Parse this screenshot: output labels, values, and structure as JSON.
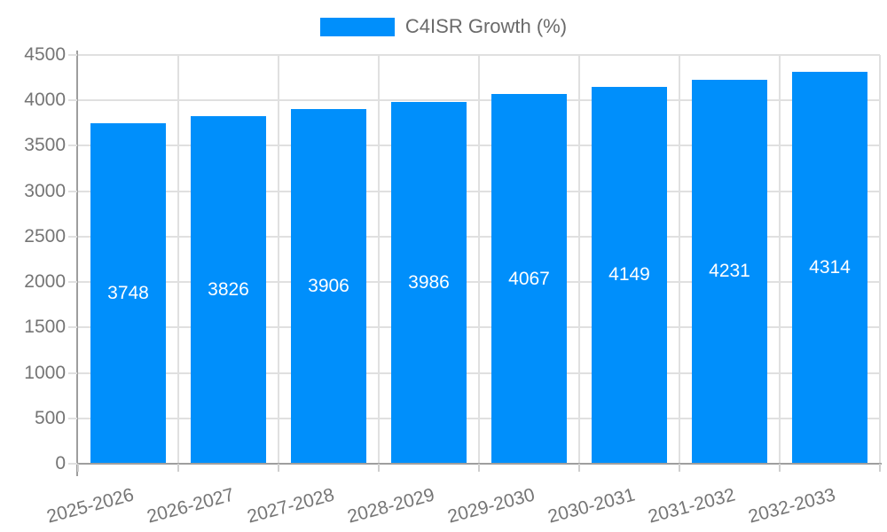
{
  "chart_data": {
    "type": "bar",
    "title": "",
    "categories": [
      "2025-2026",
      "2026-2027",
      "2027-2028",
      "2028-2029",
      "2029-2030",
      "2030-2031",
      "2031-2032",
      "2032-2033"
    ],
    "series": [
      {
        "name": "C4ISR Growth (%)",
        "values": [
          3748,
          3826,
          3906,
          3986,
          4067,
          4149,
          4231,
          4314
        ]
      }
    ],
    "ylim": [
      0,
      4500
    ],
    "yticks": [
      0,
      500,
      1000,
      1500,
      2000,
      2500,
      3000,
      3500,
      4000,
      4500
    ],
    "x_label_rotation_deg": -15,
    "grid": true,
    "legend_position": "top",
    "colors": {
      "bar": "#008FFB",
      "value_label": "#ffffff",
      "axis_text": "#757575",
      "legend_text": "#6a6a6a",
      "gridline": "#e0e0e0",
      "axis_line": "#9e9e9e"
    }
  }
}
